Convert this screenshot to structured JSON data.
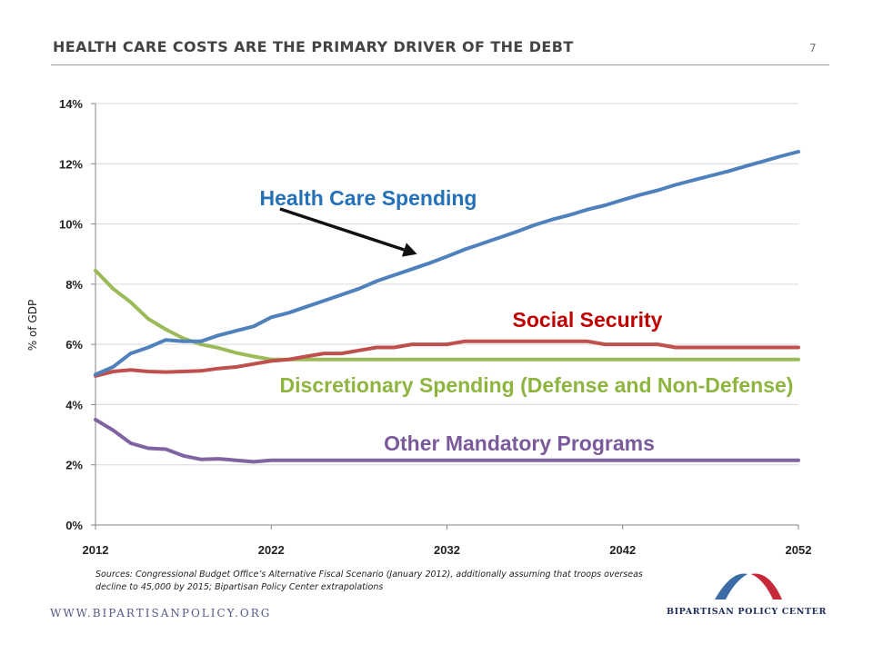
{
  "header": {
    "title": "HEALTH CARE COSTS ARE THE PRIMARY DRIVER OF THE DEBT",
    "page_number": "7"
  },
  "footer": {
    "sources": "Sources: Congressional  Budget Office’s Alternative Fiscal Scenario (January 2012), additionally assuming that troops overseas decline to 45,000 by 2015; Bipartisan Policy Center extrapolations",
    "url": "WWW.BIPARTISANPOLICY.ORG",
    "logo_text": "BIPARTISAN POLICY CENTER"
  },
  "colors": {
    "health_care": "#4F81BD",
    "social_security": "#C0504D",
    "discretionary": "#9BBB59",
    "other_mandatory": "#8064A2",
    "health_care_label": "#2471B8",
    "social_security_label": "#C00000",
    "discretionary_label": "#8DB53F",
    "other_mandatory_label": "#7A5A9A",
    "logo_blue": "#3B6CA8",
    "logo_red": "#C8293A",
    "logo_text": "#1E2A5A"
  },
  "chart_data": {
    "type": "line",
    "ylabel": "% of GDP",
    "ylim": [
      0,
      14
    ],
    "xlim": [
      2012,
      2052
    ],
    "yticks": [
      0,
      2,
      4,
      6,
      8,
      10,
      12,
      14
    ],
    "ytick_labels": [
      "0%",
      "2%",
      "4%",
      "6%",
      "8%",
      "10%",
      "12%",
      "14%"
    ],
    "xticks": [
      2012,
      2022,
      2032,
      2042,
      2052
    ],
    "xtick_labels": [
      "2012",
      "2022",
      "2032",
      "2042",
      "2052"
    ],
    "grid": "horizontal",
    "x": [
      2012,
      2013,
      2014,
      2015,
      2016,
      2017,
      2018,
      2019,
      2020,
      2021,
      2022,
      2023,
      2024,
      2025,
      2026,
      2027,
      2028,
      2029,
      2030,
      2031,
      2032,
      2033,
      2034,
      2035,
      2036,
      2037,
      2038,
      2039,
      2040,
      2041,
      2042,
      2043,
      2044,
      2045,
      2046,
      2047,
      2048,
      2049,
      2050,
      2051,
      2052
    ],
    "series": [
      {
        "name": "Health Care Spending",
        "color_key": "health_care",
        "values": [
          5.0,
          5.25,
          5.7,
          5.9,
          6.15,
          6.1,
          6.1,
          6.3,
          6.45,
          6.6,
          6.9,
          7.05,
          7.25,
          7.45,
          7.65,
          7.85,
          8.1,
          8.3,
          8.5,
          8.7,
          8.92,
          9.15,
          9.35,
          9.55,
          9.75,
          9.97,
          10.15,
          10.3,
          10.48,
          10.62,
          10.8,
          10.97,
          11.12,
          11.3,
          11.45,
          11.6,
          11.75,
          11.92,
          12.08,
          12.25,
          12.4
        ]
      },
      {
        "name": "Social Security",
        "color_key": "social_security",
        "values": [
          4.95,
          5.1,
          5.15,
          5.1,
          5.08,
          5.1,
          5.12,
          5.2,
          5.25,
          5.35,
          5.45,
          5.5,
          5.6,
          5.7,
          5.7,
          5.8,
          5.9,
          5.9,
          6.0,
          6.0,
          6.0,
          6.1,
          6.1,
          6.1,
          6.1,
          6.1,
          6.1,
          6.1,
          6.1,
          6.0,
          6.0,
          6.0,
          6.0,
          5.9,
          5.9,
          5.9,
          5.9,
          5.9,
          5.9,
          5.9,
          5.9
        ]
      },
      {
        "name": "Discretionary Spending (Defense and Non-Defense)",
        "color_key": "discretionary",
        "values": [
          8.45,
          7.85,
          7.4,
          6.85,
          6.5,
          6.2,
          6.0,
          5.88,
          5.72,
          5.6,
          5.5,
          5.5,
          5.5,
          5.5,
          5.5,
          5.5,
          5.5,
          5.5,
          5.5,
          5.5,
          5.5,
          5.5,
          5.5,
          5.5,
          5.5,
          5.5,
          5.5,
          5.5,
          5.5,
          5.5,
          5.5,
          5.5,
          5.5,
          5.5,
          5.5,
          5.5,
          5.5,
          5.5,
          5.5,
          5.5,
          5.5
        ]
      },
      {
        "name": "Other Mandatory Programs",
        "color_key": "other_mandatory",
        "values": [
          3.5,
          3.15,
          2.72,
          2.55,
          2.52,
          2.3,
          2.18,
          2.2,
          2.15,
          2.1,
          2.15,
          2.15,
          2.15,
          2.15,
          2.15,
          2.15,
          2.15,
          2.15,
          2.15,
          2.15,
          2.15,
          2.15,
          2.15,
          2.15,
          2.15,
          2.15,
          2.15,
          2.15,
          2.15,
          2.15,
          2.15,
          2.15,
          2.15,
          2.15,
          2.15,
          2.15,
          2.15,
          2.15,
          2.15,
          2.15,
          2.15
        ]
      }
    ],
    "annotations": [
      {
        "text": "Health Care Spending",
        "series": 0,
        "arrow_tail": [
          2022.5,
          10.5
        ],
        "arrow_head": [
          2030.3,
          9.0
        ]
      },
      {
        "text": "Social Security",
        "series": 1
      },
      {
        "text": "Discretionary Spending (Defense and Non-Defense)",
        "series": 2
      },
      {
        "text": "Other Mandatory Programs",
        "series": 3
      }
    ]
  }
}
